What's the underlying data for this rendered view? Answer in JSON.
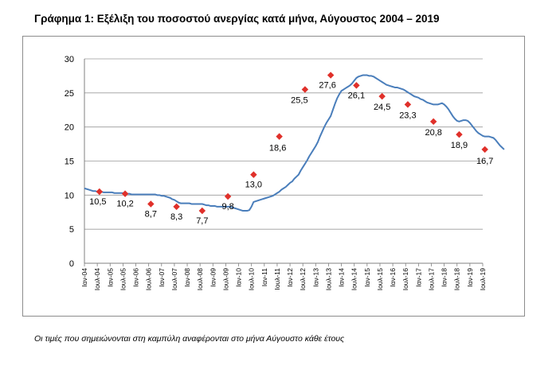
{
  "title": "Γράφημα 1: Εξέλιξη του ποσοστού ανεργίας κατά μήνα, Αύγουστος 2004 – 2019",
  "note": "Οι τιμές που σημειώνονται στη καμπύλη αναφέρονται στο μήνα Αύγουστο κάθε έτους",
  "chart_data": {
    "type": "line",
    "title": "Γράφημα 1: Εξέλιξη του ποσοστού ανεργίας κατά μήνα, Αύγουστος 2004 – 2019",
    "xlabel": "",
    "ylabel": "",
    "ylim": [
      0,
      30
    ],
    "yticks": [
      0,
      5,
      10,
      15,
      20,
      25,
      30
    ],
    "grid": true,
    "legend": "none",
    "line_color": "#4a7ebb",
    "marker_color": "#e0302a",
    "x_tick_labels": [
      "Ιαν-04",
      "Ιουλ-04",
      "Ιαν-05",
      "Ιουλ-05",
      "Ιαν-06",
      "Ιουλ-06",
      "Ιαν-07",
      "Ιουλ-07",
      "Ιαν-08",
      "Ιουλ-08",
      "Ιαν-09",
      "Ιουλ-09",
      "Ιαν-10",
      "Ιουλ-10",
      "Ιαν-11",
      "Ιουλ-11",
      "Ιαν-12",
      "Ιουλ-12",
      "Ιαν-13",
      "Ιουλ-13",
      "Ιαν-14",
      "Ιουλ-14",
      "Ιαν-15",
      "Ιουλ-15",
      "Ιαν-16",
      "Ιουλ-16",
      "Ιαν-17",
      "Ιουλ-17",
      "Ιαν-18",
      "Ιουλ-18",
      "Ιαν-19",
      "Ιουλ-19"
    ],
    "monthly_series": {
      "start": "2004-01",
      "end": "2019-08",
      "values": [
        11.0,
        10.9,
        10.8,
        10.7,
        10.6,
        10.6,
        10.5,
        10.5,
        10.5,
        10.4,
        10.4,
        10.4,
        10.4,
        10.4,
        10.3,
        10.3,
        10.3,
        10.3,
        10.3,
        10.2,
        10.2,
        10.2,
        10.1,
        10.1,
        10.1,
        10.1,
        10.1,
        10.1,
        10.1,
        10.1,
        10.1,
        10.1,
        10.1,
        10.1,
        10.0,
        10.0,
        9.9,
        9.9,
        9.8,
        9.7,
        9.6,
        9.4,
        9.3,
        9.1,
        8.9,
        8.8,
        8.8,
        8.8,
        8.8,
        8.8,
        8.7,
        8.7,
        8.7,
        8.7,
        8.7,
        8.7,
        8.6,
        8.5,
        8.5,
        8.4,
        8.4,
        8.4,
        8.3,
        8.3,
        8.3,
        8.3,
        8.3,
        8.3,
        8.3,
        8.2,
        8.1,
        8.0,
        7.9,
        7.8,
        7.7,
        7.7,
        7.7,
        7.8,
        8.3,
        9.0,
        9.1,
        9.2,
        9.3,
        9.4,
        9.5,
        9.6,
        9.7,
        9.8,
        9.9,
        10.1,
        10.3,
        10.5,
        10.8,
        11.0,
        11.2,
        11.5,
        11.8,
        12.0,
        12.4,
        12.7,
        13.0,
        13.6,
        14.1,
        14.6,
        15.1,
        15.7,
        16.2,
        16.7,
        17.2,
        17.8,
        18.6,
        19.3,
        20.0,
        20.6,
        21.1,
        21.6,
        22.5,
        23.4,
        24.2,
        24.8,
        25.3,
        25.5,
        25.7,
        25.9,
        26.1,
        26.4,
        26.8,
        27.2,
        27.4,
        27.5,
        27.6,
        27.6,
        27.6,
        27.5,
        27.5,
        27.4,
        27.2,
        27.0,
        26.8,
        26.6,
        26.4,
        26.2,
        26.1,
        26.0,
        25.9,
        25.8,
        25.8,
        25.7,
        25.6,
        25.5,
        25.3,
        25.1,
        24.9,
        24.7,
        24.5,
        24.4,
        24.3,
        24.1,
        24.0,
        23.8,
        23.6,
        23.5,
        23.4,
        23.3,
        23.3,
        23.3,
        23.4,
        23.5,
        23.3,
        23.0,
        22.6,
        22.1,
        21.6,
        21.2,
        20.9,
        20.8,
        20.9,
        21.0,
        21.0,
        20.9,
        20.6,
        20.2,
        19.8,
        19.4,
        19.1,
        18.9,
        18.7,
        18.6,
        18.6,
        18.6,
        18.5,
        18.4,
        18.1,
        17.7,
        17.3,
        17.0,
        16.7
      ]
    },
    "august_values": [
      {
        "year": 2004,
        "value": 10.5
      },
      {
        "year": 2005,
        "value": 10.2
      },
      {
        "year": 2006,
        "value": 8.7
      },
      {
        "year": 2007,
        "value": 8.3
      },
      {
        "year": 2008,
        "value": 7.7
      },
      {
        "year": 2009,
        "value": 9.8
      },
      {
        "year": 2010,
        "value": 13.0
      },
      {
        "year": 2011,
        "value": 18.6
      },
      {
        "year": 2012,
        "value": 25.5
      },
      {
        "year": 2013,
        "value": 27.6
      },
      {
        "year": 2014,
        "value": 26.1
      },
      {
        "year": 2015,
        "value": 24.5
      },
      {
        "year": 2016,
        "value": 23.3
      },
      {
        "year": 2017,
        "value": 20.8
      },
      {
        "year": 2018,
        "value": 18.9
      },
      {
        "year": 2019,
        "value": 16.7
      }
    ],
    "data_labels": [
      "10,5",
      "10,2",
      "8,7",
      "8,3",
      "7,7",
      "9,8",
      "13,0",
      "18,6",
      "25,5",
      "27,6",
      "26,1",
      "24,5",
      "23,3",
      "20,8",
      "18,9",
      "16,7"
    ]
  }
}
